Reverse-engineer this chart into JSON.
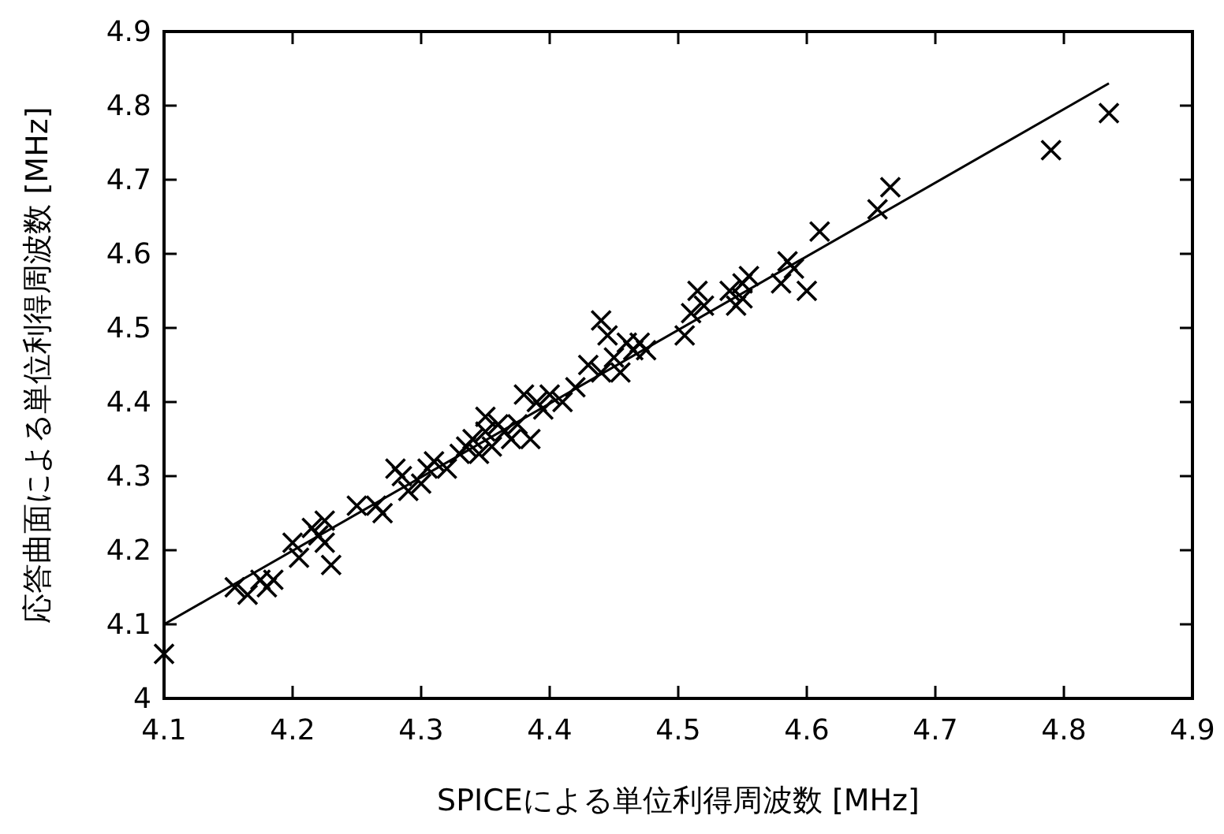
{
  "chart_data": {
    "type": "scatter",
    "xlabel": "SPICEによる単位利得周波数 [MHz]",
    "ylabel": "応答曲面による単位利得周波数 [MHz]",
    "xlim": [
      4.1,
      4.9
    ],
    "ylim": [
      4,
      4.9
    ],
    "xticks": [
      4.1,
      4.2,
      4.3,
      4.4,
      4.5,
      4.6,
      4.7,
      4.8,
      4.9
    ],
    "yticks": [
      4,
      4.1,
      4.2,
      4.3,
      4.4,
      4.5,
      4.6,
      4.7,
      4.8,
      4.9
    ],
    "series": [
      {
        "type": "scatter",
        "color": "#000000",
        "marker": "cross",
        "x": [
          4.1,
          4.155,
          4.165,
          4.175,
          4.18,
          4.185,
          4.2,
          4.205,
          4.215,
          4.22,
          4.225,
          4.225,
          4.23,
          4.25,
          4.265,
          4.27,
          4.28,
          4.285,
          4.29,
          4.3,
          4.305,
          4.31,
          4.32,
          4.33,
          4.335,
          4.34,
          4.345,
          4.35,
          4.35,
          4.355,
          4.36,
          4.365,
          4.37,
          4.375,
          4.38,
          4.385,
          4.39,
          4.395,
          4.4,
          4.41,
          4.42,
          4.43,
          4.44,
          4.445,
          4.44,
          4.45,
          4.455,
          4.46,
          4.465,
          4.47,
          4.475,
          4.505,
          4.51,
          4.515,
          4.52,
          4.54,
          4.545,
          4.55,
          4.55,
          4.555,
          4.58,
          4.585,
          4.59,
          4.6,
          4.61,
          4.655,
          4.665,
          4.79,
          4.835
        ],
        "values": [
          4.06,
          4.15,
          4.14,
          4.16,
          4.15,
          4.16,
          4.21,
          4.19,
          4.23,
          4.22,
          4.24,
          4.21,
          4.18,
          4.26,
          4.26,
          4.25,
          4.31,
          4.3,
          4.28,
          4.29,
          4.31,
          4.32,
          4.31,
          4.33,
          4.34,
          4.35,
          4.33,
          4.36,
          4.38,
          4.34,
          4.37,
          4.36,
          4.35,
          4.37,
          4.41,
          4.35,
          4.4,
          4.39,
          4.41,
          4.4,
          4.42,
          4.45,
          4.51,
          4.49,
          4.44,
          4.46,
          4.44,
          4.48,
          4.47,
          4.48,
          4.47,
          4.49,
          4.52,
          4.55,
          4.53,
          4.55,
          4.53,
          4.54,
          4.56,
          4.57,
          4.56,
          4.59,
          4.58,
          4.55,
          4.63,
          4.66,
          4.69,
          4.74,
          4.79
        ]
      },
      {
        "type": "line",
        "color": "#000000",
        "x": [
          4.1,
          4.835
        ],
        "values": [
          4.1,
          4.83
        ]
      }
    ]
  }
}
